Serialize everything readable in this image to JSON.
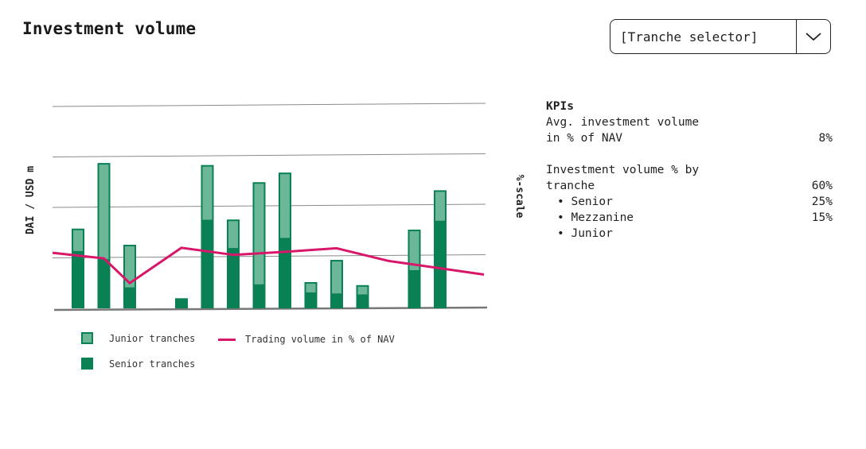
{
  "title": "Investment volume",
  "selector": {
    "label": "[Tranche selector]",
    "icon": "chevron-down-icon"
  },
  "colors": {
    "junior": "#6cb798",
    "senior": "#0a8055",
    "line": "#d8176a",
    "grid": "#8a8a8a"
  },
  "chart_data": {
    "type": "bar",
    "ylabel": "DAI / USD m",
    "y2label": "%-scale",
    "grid": true,
    "ylim": [
      0,
      4
    ],
    "stacked": true,
    "series": [
      {
        "name": "Senior tranches",
        "kind": "bar",
        "values": [
          1.12,
          0.96,
          0.4,
          0,
          0.2,
          1.74,
          1.18,
          0.46,
          1.38,
          0.3,
          0.28,
          0.26,
          0,
          0.74,
          1.72
        ]
      },
      {
        "name": "Junior tranches",
        "kind": "bar",
        "values": [
          0.46,
          1.92,
          0.86,
          0,
          0,
          1.1,
          0.58,
          2.04,
          1.31,
          0.22,
          0.68,
          0.2,
          0,
          0.82,
          0.62
        ]
      },
      {
        "name": "Trading volume in % of NAV",
        "kind": "line",
        "values": [
          1.1,
          0.99,
          0.5,
          null,
          1.2,
          null,
          1.06,
          null,
          1.12,
          null,
          1.19,
          null,
          0.94,
          null,
          0.67
        ]
      }
    ]
  },
  "legend": {
    "junior": "Junior tranches",
    "line": "Trading volume in % of NAV",
    "senior": "Senior tranches"
  },
  "kpis": {
    "heading": "KPIs",
    "avg_line1": "Avg. investment volume",
    "avg_line2": "in % of NAV",
    "avg_value": "8%",
    "by_line1": "Investment volume % by",
    "by_line2": "tranche",
    "by_total": "60%",
    "items": [
      {
        "label": "Senior",
        "value": "25%"
      },
      {
        "label": "Mezzanine",
        "value": "15%"
      },
      {
        "label": "Junior",
        "value": ""
      }
    ]
  }
}
